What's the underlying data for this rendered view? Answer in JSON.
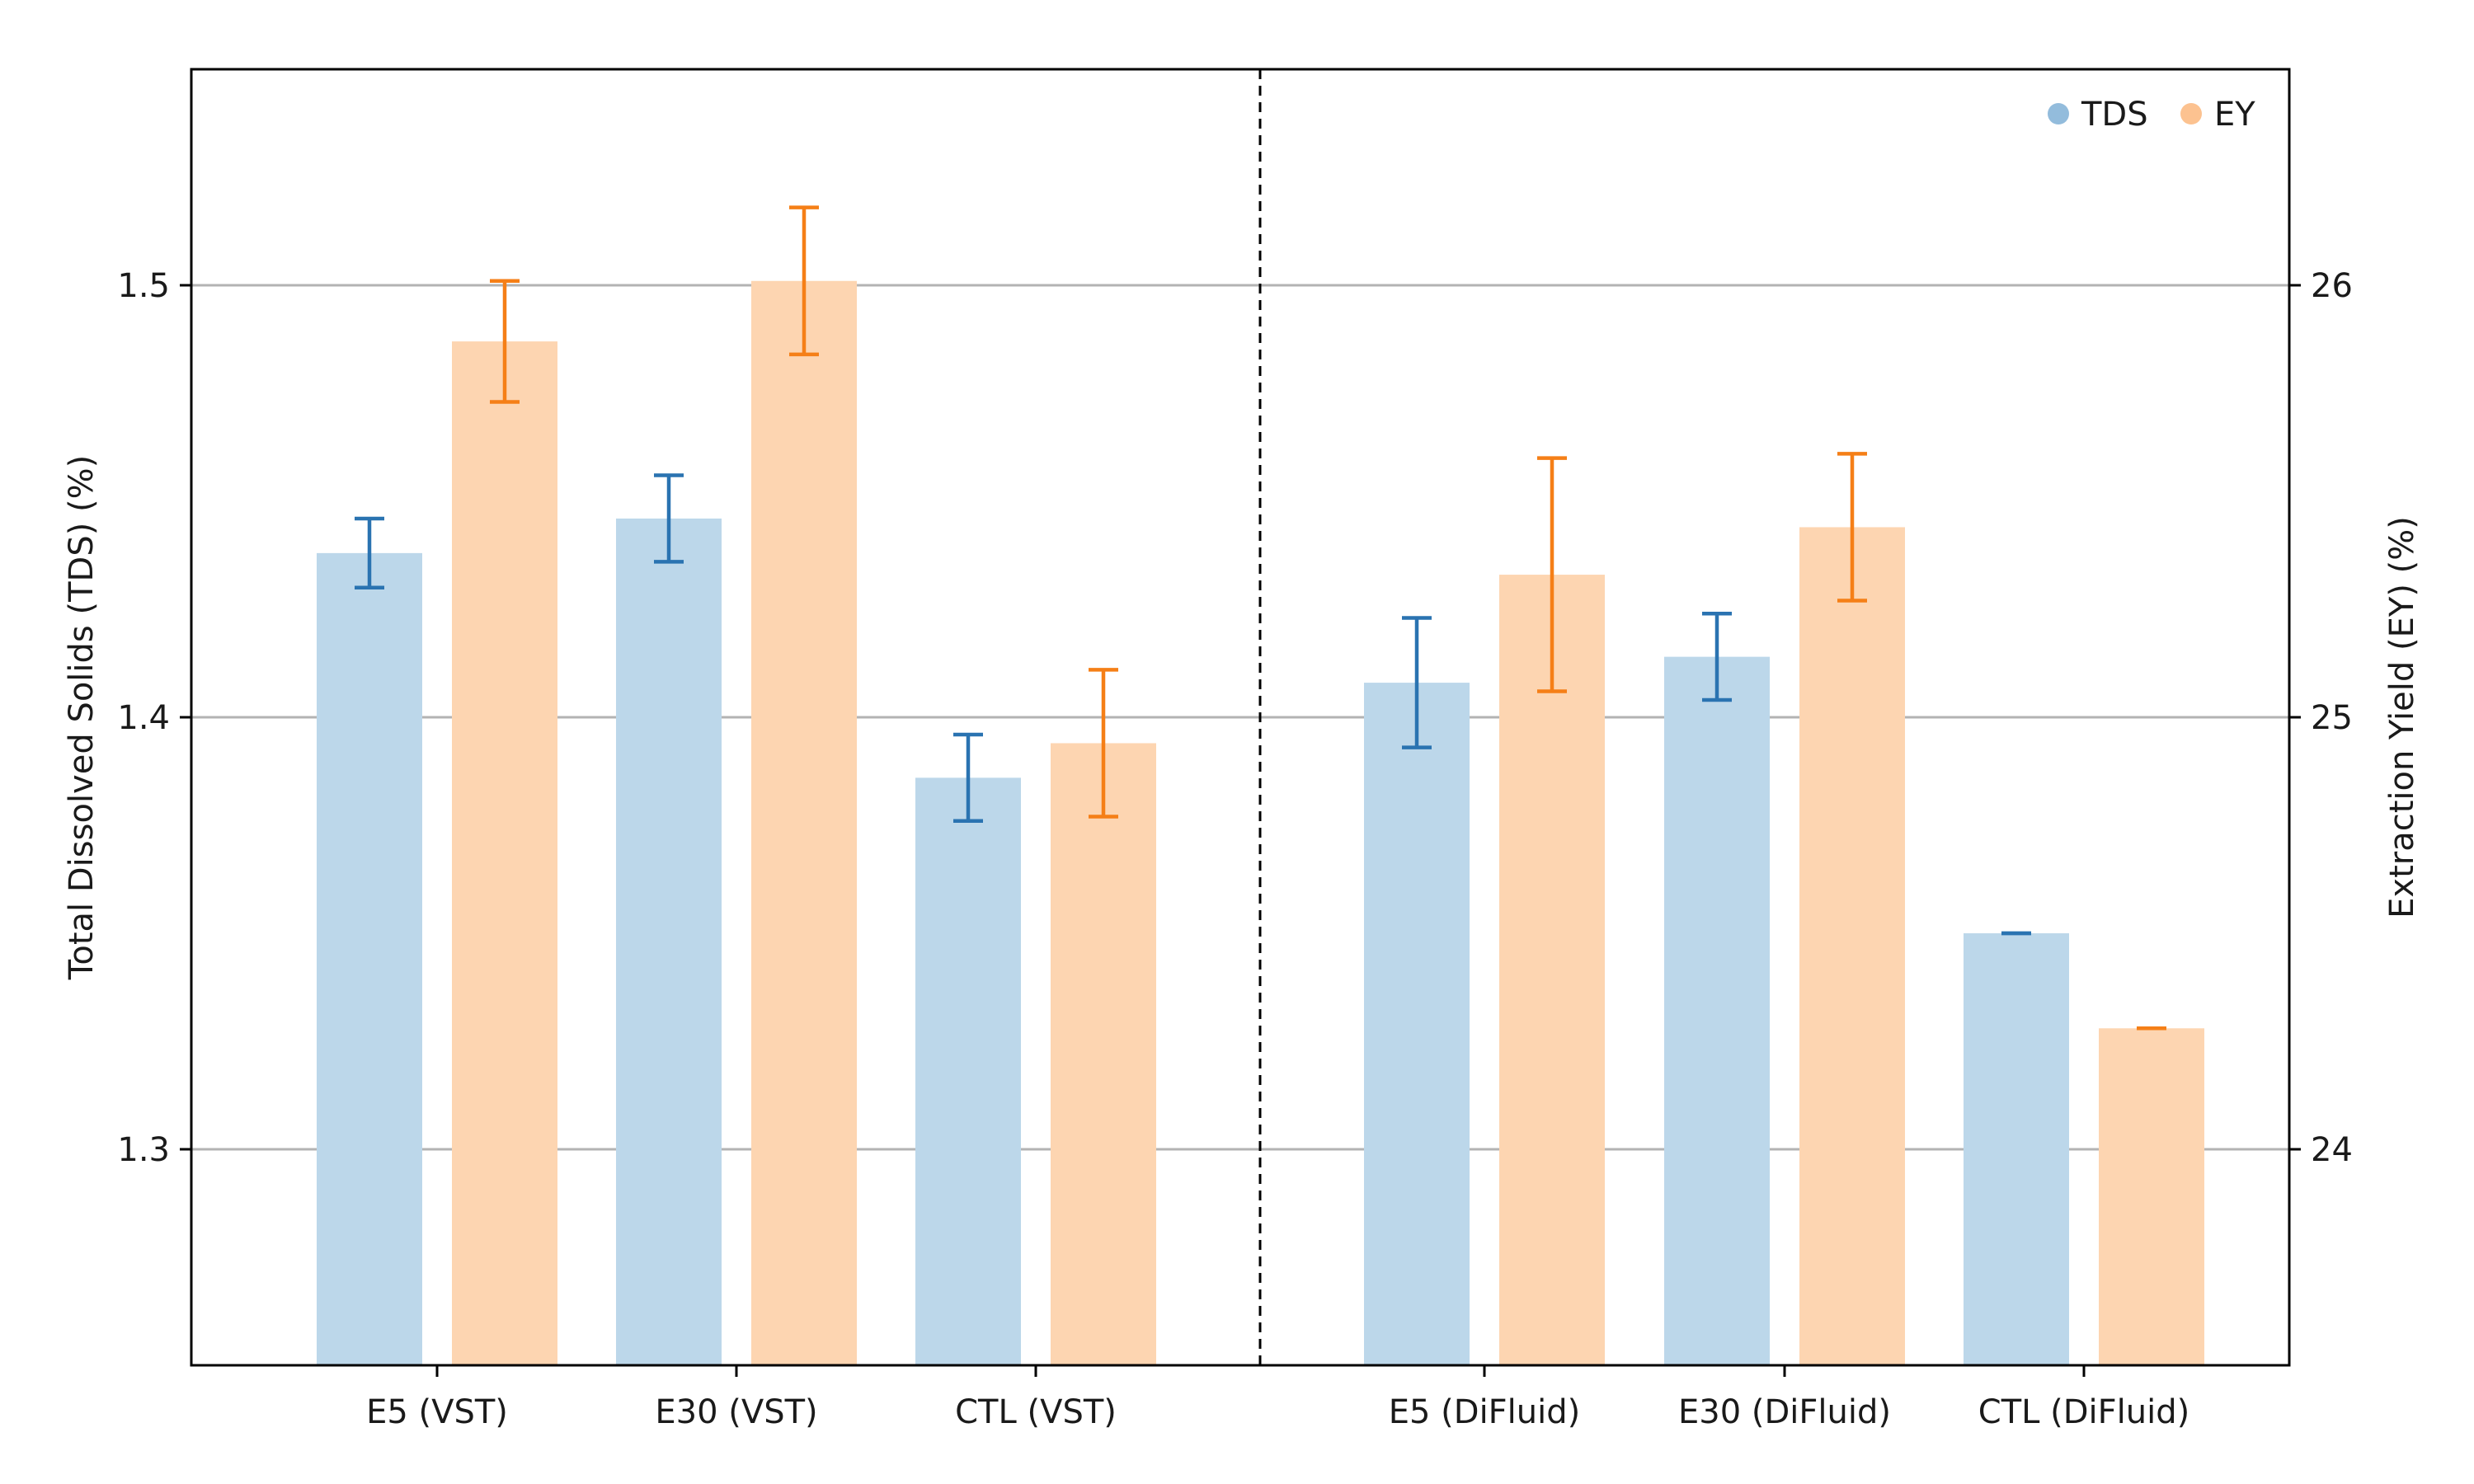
{
  "chart_data": {
    "type": "bar",
    "categories": [
      "E5 (VST)",
      "E30 (VST)",
      "CTL (VST)",
      "E5 (DiFluid)",
      "E30 (DiFluid)",
      "CTL (DiFluid)"
    ],
    "series": [
      {
        "name": "TDS",
        "axis": "left",
        "color": "#bcd7ea",
        "error_color": "#2a73b1",
        "values": [
          1.438,
          1.446,
          1.386,
          1.408,
          1.414,
          1.35
        ],
        "errors": [
          0.008,
          0.01,
          0.01,
          0.015,
          0.01,
          0.0
        ]
      },
      {
        "name": "EY",
        "axis": "right",
        "color": "#fdd5b1",
        "error_color": "#f57f17",
        "values": [
          25.87,
          26.01,
          24.94,
          25.33,
          25.44,
          24.28
        ],
        "errors": [
          0.14,
          0.17,
          0.17,
          0.27,
          0.17,
          0.0
        ]
      }
    ],
    "ylabel": "Total Dissolved Solids (TDS) (%)",
    "ylabel_right": "Extraction Yield (EY) (%)",
    "ylim": [
      1.25,
      1.55
    ],
    "ylim_right": [
      23.5,
      26.5
    ],
    "yticks": [
      "1.3",
      "1.4",
      "1.5"
    ],
    "yticks_right": [
      "24",
      "25",
      "26"
    ],
    "grid": true,
    "legend": "top-right",
    "divider": "dashed line between CTL (VST) and E5 (DiFluid)"
  }
}
